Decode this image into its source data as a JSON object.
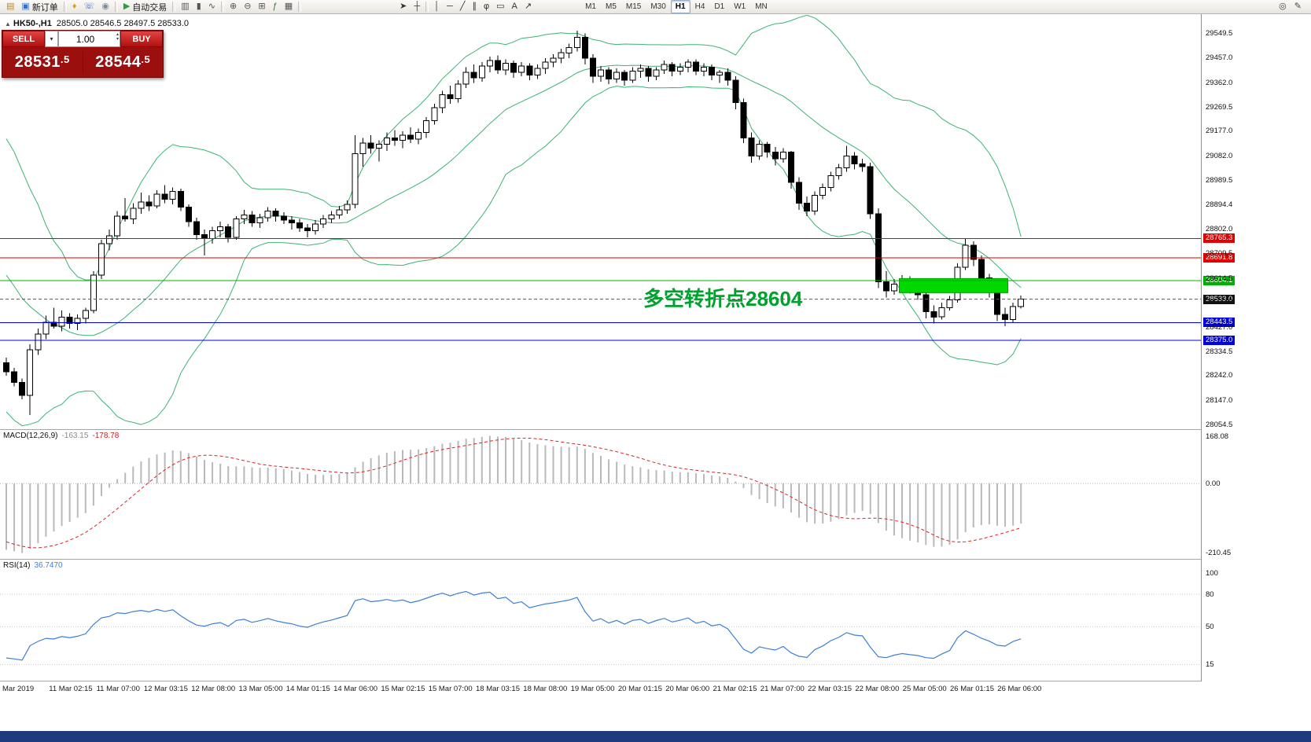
{
  "toolbar": {
    "groups": [
      {
        "name": "file",
        "items": [
          {
            "name": "chart-window-icon",
            "glyph": "▤",
            "color": "#b8862b"
          },
          {
            "name": "new-order-button",
            "glyph": "▣",
            "color": "#3a6fbf",
            "label": "新订单"
          }
        ]
      },
      {
        "name": "terminal",
        "items": [
          {
            "name": "alerts-icon",
            "glyph": "♦",
            "color": "#d9a21a"
          },
          {
            "name": "mobile-phone-icon",
            "glyph": "☏",
            "color": "#3b6fc4"
          },
          {
            "name": "community-icon",
            "glyph": "◉",
            "color": "#7a8a9a"
          }
        ]
      },
      {
        "name": "autotrading",
        "items": [
          {
            "name": "autotrading-button",
            "glyph": "▶",
            "color": "#2e9e3f",
            "label": "自动交易"
          }
        ]
      },
      {
        "name": "charttype",
        "items": [
          {
            "name": "bar-chart-icon",
            "glyph": "▥",
            "color": "#555555"
          },
          {
            "name": "candlestick-chart-icon",
            "glyph": "▮",
            "color": "#555555"
          },
          {
            "name": "line-chart-icon",
            "glyph": "∿",
            "color": "#555555"
          }
        ]
      },
      {
        "name": "zoom",
        "items": [
          {
            "name": "zoom-in-button",
            "glyph": "⊕",
            "color": "#555555"
          },
          {
            "name": "zoom-out-button",
            "glyph": "⊖",
            "color": "#555555"
          },
          {
            "name": "tile-windows-icon",
            "glyph": "⊞",
            "color": "#555555"
          },
          {
            "name": "indicators-icon",
            "glyph": "ƒ",
            "color": "#2c7a2c"
          },
          {
            "name": "templates-icon",
            "glyph": "▦",
            "color": "#555555"
          }
        ]
      },
      {
        "name": "cursor",
        "items": [
          {
            "name": "cursor-icon",
            "glyph": "➤",
            "color": "#333333"
          },
          {
            "name": "crosshair-icon",
            "glyph": "┼",
            "color": "#333333"
          }
        ]
      },
      {
        "name": "objects",
        "items": [
          {
            "name": "vertical-line-icon",
            "glyph": "│",
            "color": "#333333"
          },
          {
            "name": "horizontal-line-icon",
            "glyph": "─",
            "color": "#333333"
          },
          {
            "name": "trendline-icon",
            "glyph": "╱",
            "color": "#333333"
          },
          {
            "name": "channel-icon",
            "glyph": "∥",
            "color": "#333333"
          },
          {
            "name": "fibonacci-icon",
            "glyph": "φ",
            "color": "#333333"
          },
          {
            "name": "shapes-icon",
            "glyph": "▭",
            "color": "#333333"
          },
          {
            "name": "text-icon",
            "glyph": "A",
            "color": "#333333"
          },
          {
            "name": "arrows-icon",
            "glyph": "↗",
            "color": "#333333"
          }
        ]
      }
    ],
    "timeframes": [
      "M1",
      "M5",
      "M15",
      "M30",
      "H1",
      "H4",
      "D1",
      "W1",
      "MN"
    ],
    "active_timeframe": "H1",
    "right_items": [
      {
        "name": "search-icon",
        "glyph": "◎"
      },
      {
        "name": "quick-edit-icon",
        "glyph": "✎"
      }
    ]
  },
  "chart": {
    "collapse_glyph": "▲",
    "symbol": "HK50-,H1",
    "ohlc_text": "28505.0 28546.5 28497.5 28533.0"
  },
  "trade_widget": {
    "sell_label": "SELL",
    "buy_label": "BUY",
    "volume": "1.00",
    "sell_price": "28531.5",
    "buy_price": "28544.5",
    "dropdown_glyph": "▾",
    "spin_up_glyph": "▴",
    "spin_down_glyph": "▾"
  },
  "annotation": {
    "text": "多空转折点28604",
    "color": "#00a22e"
  },
  "indicators": {
    "macd": {
      "name": "MACD(12,26,9)",
      "value": "-163.15",
      "signal_value": "-178.78",
      "axis_labels": [
        "168.08",
        "0.00",
        "-210.45"
      ],
      "histogram_color": "#b9b9b9",
      "signal_color": "#dd2222"
    },
    "rsi": {
      "name": "RSI(14)",
      "value": "36.7470",
      "axis_labels": [
        "100",
        "80",
        "50",
        "15"
      ],
      "levels": [
        80,
        50,
        15
      ],
      "line_color": "#3f7fd6"
    }
  },
  "price_axis_labels": [
    "29549.5",
    "29457.0",
    "29362.0",
    "29269.5",
    "29177.0",
    "29082.0",
    "28989.5",
    "28894.4",
    "28802.0",
    "28709.5",
    "28614.5",
    "28522.0",
    "28427.0",
    "28334.5",
    "28242.0",
    "28147.0",
    "28054.5"
  ],
  "time_axis_labels": [
    "Mar 2019",
    "11 Mar 02:15",
    "11 Mar 07:00",
    "12 Mar 03:15",
    "12 Mar 08:00",
    "13 Mar 05:00",
    "14 Mar 01:15",
    "14 Mar 06:00",
    "15 Mar 02:15",
    "15 Mar 07:00",
    "18 Mar 03:15",
    "18 Mar 08:00",
    "19 Mar 05:00",
    "20 Mar 01:15",
    "20 Mar 06:00",
    "21 Mar 02:15",
    "21 Mar 07:00",
    "22 Mar 03:15",
    "22 Mar 08:00",
    "25 Mar 05:00",
    "26 Mar 01:15",
    "26 Mar 06:00"
  ],
  "levels": [
    {
      "price": 28765.3,
      "label": "28765.3",
      "color": "#e00000"
    },
    {
      "price": 28691.8,
      "label": "28691.8",
      "color": "#e00000"
    },
    {
      "price": 28604.1,
      "label": "28604.1",
      "color": "#00b000"
    },
    {
      "price": 28443.5,
      "label": "28443.5",
      "color": "#0000dd"
    },
    {
      "price": 28375.0,
      "label": "28375.0",
      "color": "#0000dd"
    }
  ],
  "current_price": {
    "price": 28533.0,
    "label": "28533.0",
    "color": "#111111"
  },
  "highlight_box": {
    "x_start_index": 113,
    "x_end_index": 126,
    "price_top": 28612,
    "price_bottom": 28558,
    "color": "#00d800",
    "border": "#00a000"
  },
  "chart_data": {
    "type": "candlestick",
    "symbol": "HK50",
    "timeframe": "H1",
    "title": "HK50-,H1",
    "price_range": [
      28036,
      29623
    ],
    "overlays": [
      {
        "type": "bollinger",
        "period": 20,
        "deviation": 2,
        "color": "#3cb371"
      }
    ],
    "warmup_closes": [
      29100,
      29050,
      29090,
      28980,
      28890,
      28930,
      28820,
      28720,
      28770,
      28650,
      28560,
      28620,
      28500,
      28440,
      28490,
      28390,
      28330,
      28400,
      28320,
      28290
    ],
    "candles": [
      [
        28290,
        28310,
        28240,
        28255
      ],
      [
        28255,
        28270,
        28200,
        28215
      ],
      [
        28215,
        28230,
        28150,
        28165
      ],
      [
        28165,
        28360,
        28090,
        28340
      ],
      [
        28340,
        28420,
        28320,
        28400
      ],
      [
        28400,
        28470,
        28380,
        28445
      ],
      [
        28445,
        28500,
        28420,
        28430
      ],
      [
        28430,
        28490,
        28410,
        28465
      ],
      [
        28465,
        28480,
        28420,
        28440
      ],
      [
        28440,
        28475,
        28415,
        28460
      ],
      [
        28460,
        28500,
        28440,
        28490
      ],
      [
        28490,
        28640,
        28480,
        28625
      ],
      [
        28625,
        28760,
        28610,
        28745
      ],
      [
        28745,
        28800,
        28720,
        28775
      ],
      [
        28775,
        28870,
        28760,
        28850
      ],
      [
        28850,
        28920,
        28830,
        28840
      ],
      [
        28840,
        28900,
        28820,
        28880
      ],
      [
        28880,
        28940,
        28860,
        28905
      ],
      [
        28905,
        28930,
        28870,
        28890
      ],
      [
        28890,
        28950,
        28880,
        28935
      ],
      [
        28935,
        28970,
        28900,
        28915
      ],
      [
        28915,
        28960,
        28895,
        28945
      ],
      [
        28945,
        28955,
        28870,
        28885
      ],
      [
        28885,
        28895,
        28810,
        28830
      ],
      [
        28830,
        28845,
        28760,
        28780
      ],
      [
        28780,
        28800,
        28700,
        28765
      ],
      [
        28765,
        28810,
        28745,
        28795
      ],
      [
        28795,
        28830,
        28770,
        28810
      ],
      [
        28810,
        28820,
        28750,
        28770
      ],
      [
        28770,
        28850,
        28760,
        28840
      ],
      [
        28840,
        28875,
        28820,
        28855
      ],
      [
        28855,
        28870,
        28810,
        28825
      ],
      [
        28825,
        28860,
        28805,
        28845
      ],
      [
        28845,
        28885,
        28830,
        28870
      ],
      [
        28870,
        28880,
        28830,
        28850
      ],
      [
        28850,
        28865,
        28820,
        28835
      ],
      [
        28835,
        28850,
        28800,
        28825
      ],
      [
        28825,
        28840,
        28790,
        28805
      ],
      [
        28805,
        28820,
        28770,
        28795
      ],
      [
        28795,
        28835,
        28780,
        28820
      ],
      [
        28820,
        28855,
        28805,
        28840
      ],
      [
        28840,
        28870,
        28825,
        28855
      ],
      [
        28855,
        28890,
        28840,
        28875
      ],
      [
        28875,
        28910,
        28860,
        28895
      ],
      [
        28895,
        29160,
        28880,
        29090
      ],
      [
        29090,
        29150,
        29040,
        29130
      ],
      [
        29130,
        29160,
        29090,
        29110
      ],
      [
        29110,
        29140,
        29060,
        29125
      ],
      [
        29125,
        29170,
        29100,
        29150
      ],
      [
        29150,
        29180,
        29120,
        29140
      ],
      [
        29140,
        29175,
        29110,
        29160
      ],
      [
        29160,
        29190,
        29130,
        29145
      ],
      [
        29145,
        29185,
        29125,
        29170
      ],
      [
        29170,
        29230,
        29150,
        29215
      ],
      [
        29215,
        29280,
        29200,
        29265
      ],
      [
        29265,
        29330,
        29245,
        29315
      ],
      [
        29315,
        29350,
        29280,
        29300
      ],
      [
        29300,
        29370,
        29285,
        29355
      ],
      [
        29355,
        29420,
        29340,
        29400
      ],
      [
        29400,
        29430,
        29360,
        29380
      ],
      [
        29380,
        29440,
        29365,
        29425
      ],
      [
        29425,
        29460,
        29400,
        29445
      ],
      [
        29445,
        29465,
        29395,
        29410
      ],
      [
        29410,
        29450,
        29390,
        29435
      ],
      [
        29435,
        29445,
        29380,
        29400
      ],
      [
        29400,
        29440,
        29385,
        29425
      ],
      [
        29425,
        29435,
        29370,
        29390
      ],
      [
        29390,
        29430,
        29375,
        29415
      ],
      [
        29415,
        29455,
        29395,
        29440
      ],
      [
        29440,
        29470,
        29420,
        29455
      ],
      [
        29455,
        29490,
        29435,
        29475
      ],
      [
        29475,
        29510,
        29455,
        29495
      ],
      [
        29495,
        29560,
        29480,
        29535
      ],
      [
        29535,
        29550,
        29430,
        29455
      ],
      [
        29455,
        29470,
        29360,
        29385
      ],
      [
        29385,
        29425,
        29365,
        29410
      ],
      [
        29410,
        29420,
        29355,
        29375
      ],
      [
        29375,
        29415,
        29360,
        29400
      ],
      [
        29400,
        29410,
        29350,
        29370
      ],
      [
        29370,
        29420,
        29360,
        29405
      ],
      [
        29405,
        29430,
        29380,
        29415
      ],
      [
        29415,
        29425,
        29365,
        29385
      ],
      [
        29385,
        29420,
        29370,
        29410
      ],
      [
        29410,
        29445,
        29395,
        29430
      ],
      [
        29430,
        29440,
        29385,
        29405
      ],
      [
        29405,
        29435,
        29390,
        29420
      ],
      [
        29420,
        29450,
        29400,
        29440
      ],
      [
        29440,
        29450,
        29390,
        29405
      ],
      [
        29405,
        29435,
        29385,
        29420
      ],
      [
        29420,
        29430,
        29370,
        29390
      ],
      [
        29390,
        29410,
        29360,
        29400
      ],
      [
        29400,
        29415,
        29350,
        29370
      ],
      [
        29370,
        29385,
        29260,
        29285
      ],
      [
        29285,
        29300,
        29130,
        29150
      ],
      [
        29150,
        29170,
        29055,
        29080
      ],
      [
        29080,
        29140,
        29065,
        29125
      ],
      [
        29125,
        29135,
        29075,
        29095
      ],
      [
        29095,
        29115,
        29045,
        29070
      ],
      [
        29070,
        29110,
        29055,
        29095
      ],
      [
        29095,
        29100,
        28955,
        28980
      ],
      [
        28980,
        29000,
        28875,
        28900
      ],
      [
        28900,
        28925,
        28850,
        28870
      ],
      [
        28870,
        28945,
        28855,
        28930
      ],
      [
        28930,
        28975,
        28915,
        28960
      ],
      [
        28960,
        29020,
        28945,
        29005
      ],
      [
        29005,
        29050,
        28990,
        29035
      ],
      [
        29035,
        29120,
        29020,
        29080
      ],
      [
        29080,
        29095,
        29030,
        29050
      ],
      [
        29050,
        29070,
        29020,
        29040
      ],
      [
        29040,
        29055,
        28840,
        28860
      ],
      [
        28860,
        28880,
        28575,
        28600
      ],
      [
        28600,
        28640,
        28540,
        28565
      ],
      [
        28565,
        28610,
        28550,
        28590
      ],
      [
        28590,
        28625,
        28570,
        28605
      ],
      [
        28605,
        28620,
        28555,
        28575
      ],
      [
        28575,
        28600,
        28530,
        28550
      ],
      [
        28550,
        28570,
        28460,
        28485
      ],
      [
        28485,
        28510,
        28440,
        28465
      ],
      [
        28465,
        28520,
        28455,
        28500
      ],
      [
        28500,
        28545,
        28490,
        28530
      ],
      [
        28530,
        28670,
        28520,
        28655
      ],
      [
        28655,
        28765,
        28645,
        28740
      ],
      [
        28740,
        28755,
        28660,
        28685
      ],
      [
        28685,
        28700,
        28590,
        28615
      ],
      [
        28615,
        28630,
        28540,
        28560
      ],
      [
        28560,
        28580,
        28450,
        28475
      ],
      [
        28475,
        28500,
        28430,
        28455
      ],
      [
        28455,
        28520,
        28445,
        28505
      ],
      [
        28505,
        28547,
        28498,
        28533
      ]
    ]
  }
}
